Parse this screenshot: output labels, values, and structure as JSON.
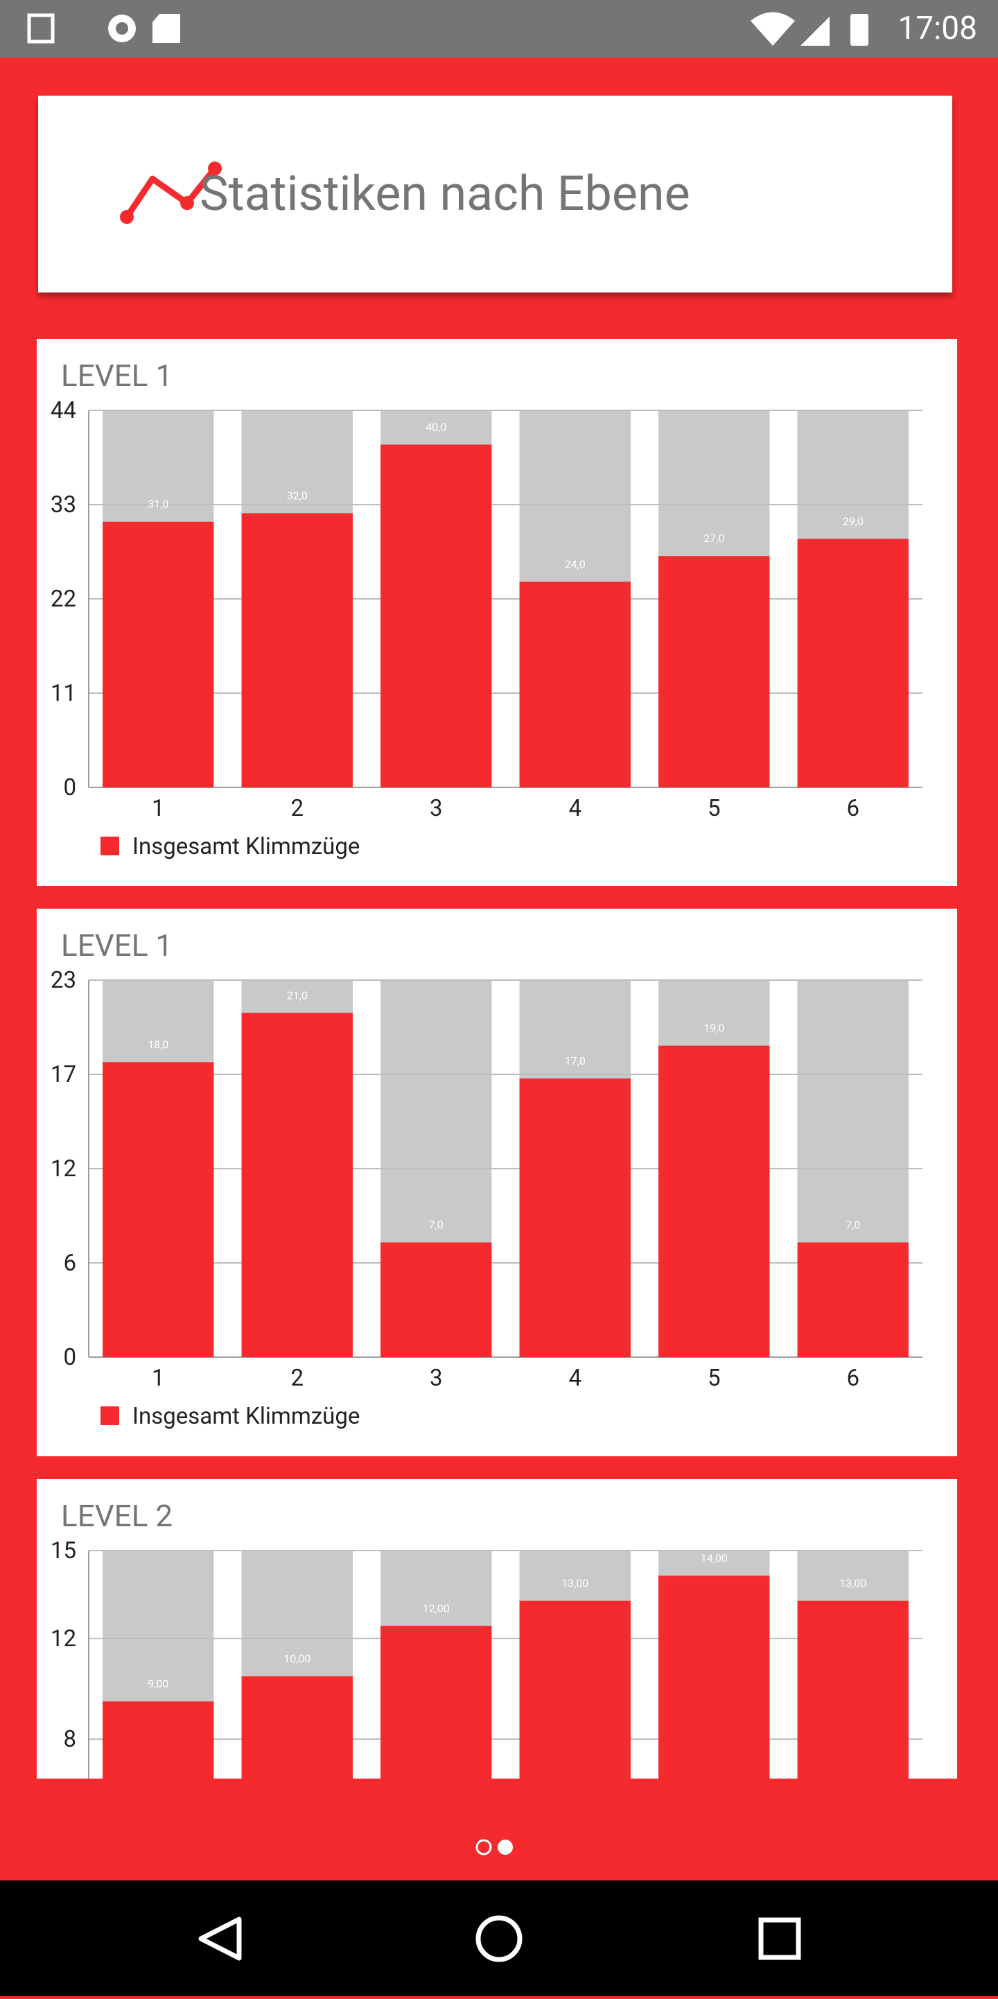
{
  "status_bar": {
    "time": "17:08"
  },
  "header": {
    "title": "Statistiken nach Ebene"
  },
  "chart_data": [
    {
      "type": "bar",
      "title": "LEVEL 1",
      "categories": [
        "1",
        "2",
        "3",
        "4",
        "5",
        "6"
      ],
      "series": [
        {
          "name": "Insgesamt Klimmzüge",
          "color": "#f42a2e",
          "values": [
            31,
            32,
            40,
            24,
            27,
            29
          ],
          "value_labels": [
            "31,0",
            "32,0",
            "40,0",
            "24,0",
            "27,0",
            "29,0"
          ]
        }
      ],
      "bar_background": "#c9c9c9",
      "ylim": [
        0,
        44
      ],
      "yticks": [
        0,
        11,
        22,
        33,
        44
      ],
      "grid": true
    },
    {
      "type": "bar",
      "title": "LEVEL 1",
      "categories": [
        "1",
        "2",
        "3",
        "4",
        "5",
        "6"
      ],
      "series": [
        {
          "name": "Insgesamt Klimmzüge",
          "color": "#f42a2e",
          "values": [
            18,
            21,
            7,
            17,
            19,
            7
          ],
          "value_labels": [
            "18,0",
            "21,0",
            "7,0",
            "17,0",
            "19,0",
            "7,0"
          ]
        }
      ],
      "bar_background": "#c9c9c9",
      "ylim": [
        0,
        23
      ],
      "yticks": [
        0,
        {
          "value": 5.75,
          "label": "6"
        },
        {
          "value": 11.5,
          "label": "12"
        },
        {
          "value": 17.25,
          "label": "17"
        },
        23
      ],
      "grid": true
    },
    {
      "type": "bar",
      "title": "LEVEL 2",
      "series": [
        {
          "color": "#f42a2e",
          "values": [
            9,
            10,
            12,
            13,
            14,
            13
          ],
          "value_labels": [
            "9,00",
            "10,00",
            "12,00",
            "13,00",
            "14,00",
            "13,00"
          ]
        }
      ],
      "bar_background": "#c9c9c9",
      "ylim": [
        0,
        15
      ],
      "yticks": [
        {
          "value": 7.5,
          "label": "8"
        },
        {
          "value": 11.5,
          "label": "12"
        },
        15
      ],
      "grid": true
    }
  ]
}
